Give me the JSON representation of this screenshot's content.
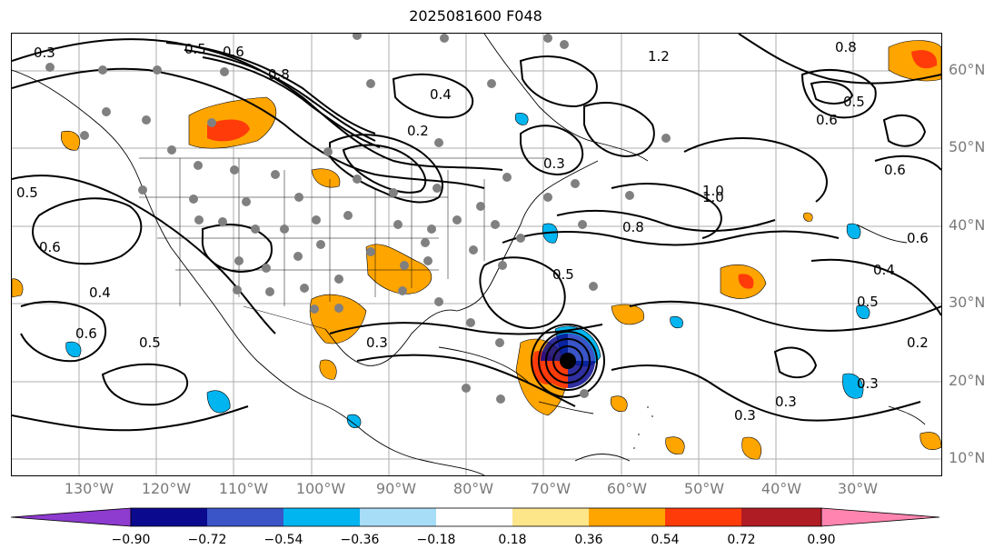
{
  "title": "2025081600 F048",
  "lat_labels": [
    "60°N",
    "50°N",
    "40°N",
    "30°N",
    "20°N",
    "10°N"
  ],
  "lon_labels": [
    "130°W",
    "120°W",
    "110°W",
    "100°W",
    "90°W",
    "80°W",
    "70°W",
    "60°W",
    "50°W",
    "40°W",
    "30°W"
  ],
  "contour_labels": [
    "0.3",
    "0.5",
    "0.6",
    "0.8",
    "0.4",
    "0.2",
    "1.2",
    "0.8",
    "0.5",
    "0.6",
    "0.3",
    "1.0",
    "0.8",
    "0.5",
    "0.4",
    "0.6",
    "0.5",
    "0.3",
    "0.6",
    "0.4",
    "0.5",
    "0.6",
    "0.3",
    "0.2",
    "0.3",
    "0.3",
    "0.5",
    "0.6",
    "1.0"
  ],
  "colorbar": {
    "ticks": [
      "−0.90",
      "−0.72",
      "−0.54",
      "−0.36",
      "−0.18",
      "0.18",
      "0.36",
      "0.54",
      "0.72",
      "0.90"
    ],
    "colors": [
      "#8e3bd0",
      "#0b0a8f",
      "#3a55c8",
      "#00b5f0",
      "#a8ddf7",
      "#ffffff",
      "#fde68a",
      "#ffa500",
      "#ff3b0a",
      "#b01c24",
      "#ff85b0"
    ]
  },
  "colors": {
    "positive_shading": "#ffa500",
    "positive_strong": "#ff3b0a",
    "negative_shading": "#00b5f0",
    "station_dots": "#808080",
    "contours": "#000000",
    "grid": "#9a9a9a"
  }
}
